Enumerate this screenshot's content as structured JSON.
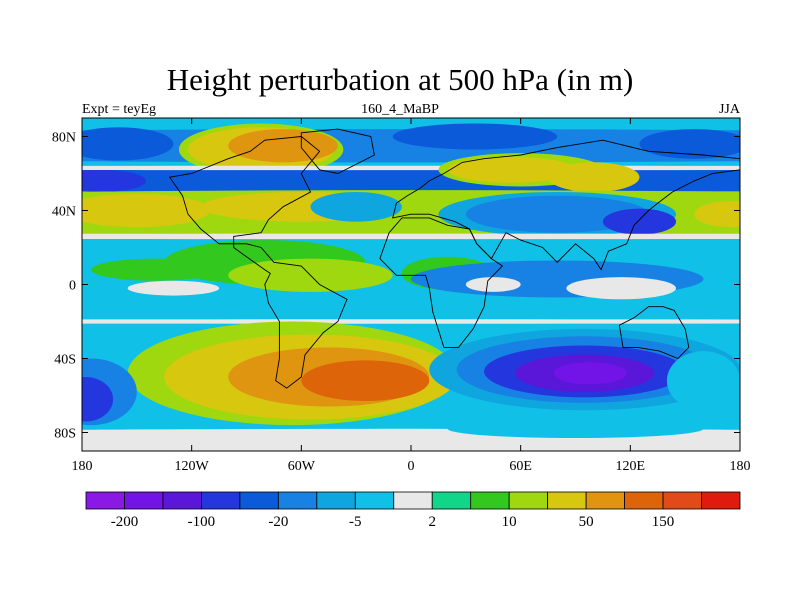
{
  "title": "Height perturbation at 500 hPa (in m)",
  "left_string": "Expt = teyEg",
  "center_string": "160_4_MaBP",
  "right_string": "JJA",
  "chart_data": {
    "type": "heatmap",
    "title": "Height perturbation at 500 hPa (in m)",
    "xlim": [
      -180,
      180
    ],
    "ylim": [
      -90,
      90
    ],
    "x_ticks": [
      {
        "value": -180,
        "label": "180"
      },
      {
        "value": -120,
        "label": "120W"
      },
      {
        "value": -60,
        "label": "60W"
      },
      {
        "value": 0,
        "label": "0"
      },
      {
        "value": 60,
        "label": "60E"
      },
      {
        "value": 120,
        "label": "120E"
      },
      {
        "value": 180,
        "label": "180"
      }
    ],
    "y_ticks": [
      {
        "value": 80,
        "label": "80N"
      },
      {
        "value": 40,
        "label": "40N"
      },
      {
        "value": 0,
        "label": "0"
      },
      {
        "value": -40,
        "label": "40S"
      },
      {
        "value": -80,
        "label": "80S"
      }
    ],
    "colorbar": {
      "colors": [
        "#8a19e6",
        "#7214e8",
        "#5a16d9",
        "#2436de",
        "#0a5ad9",
        "#1782e3",
        "#0fa6df",
        "#10c0e6",
        "#e8e8e8",
        "#10d68a",
        "#32c81e",
        "#a0d80f",
        "#d8c70f",
        "#e09511",
        "#de6409",
        "#e24a1a",
        "#e01a0e"
      ],
      "labels": [
        {
          "after_box": 1,
          "text": "-200"
        },
        {
          "after_box": 3,
          "text": "-100"
        },
        {
          "after_box": 5,
          "text": "-20"
        },
        {
          "after_box": 7,
          "text": "-5"
        },
        {
          "after_box": 9,
          "text": "2"
        },
        {
          "after_box": 11,
          "text": "10"
        },
        {
          "after_box": 13,
          "text": "50"
        },
        {
          "after_box": 15,
          "text": "150"
        }
      ]
    },
    "regions": [
      {
        "name": "band-75n",
        "lon": 0,
        "lat": 75,
        "rx": 500,
        "ry": 9,
        "color": "#1782e3"
      },
      {
        "name": "n-europe-low",
        "lon": 35,
        "lat": 80,
        "rx": 45,
        "ry": 7,
        "color": "#0a5ad9"
      },
      {
        "name": "n-pacific-low",
        "lon": -160,
        "lat": 76,
        "rx": 30,
        "ry": 9,
        "color": "#0a5ad9"
      },
      {
        "name": "e-siberia-low",
        "lon": 155,
        "lat": 76,
        "rx": 30,
        "ry": 8,
        "color": "#0a5ad9"
      },
      {
        "name": "arctic-high-1",
        "lon": -82,
        "lat": 73,
        "rx": 45,
        "ry": 14,
        "color": "#a0d80f"
      },
      {
        "name": "arctic-high-2",
        "lon": -82,
        "lat": 73,
        "rx": 40,
        "ry": 12,
        "color": "#d8c70f"
      },
      {
        "name": "arctic-high-3",
        "lon": -70,
        "lat": 75,
        "rx": 30,
        "ry": 9,
        "color": "#e09511"
      },
      {
        "name": "band-57n",
        "lon": 0,
        "lat": 57,
        "rx": 500,
        "ry": 7,
        "color": "#0a5ad9"
      },
      {
        "name": "pac-lows-57n",
        "lon": -170,
        "lat": 56,
        "rx": 25,
        "ry": 6,
        "color": "#2436de"
      },
      {
        "name": "white-57n",
        "lon": 0,
        "lat": 63,
        "rx": 500,
        "ry": 1.2,
        "color": "#e8e8e8"
      },
      {
        "name": "siberia-high-1",
        "lon": 60,
        "lat": 62,
        "rx": 45,
        "ry": 9,
        "color": "#a0d80f"
      },
      {
        "name": "siberia-high-2",
        "lon": 55,
        "lat": 62,
        "rx": 35,
        "ry": 7,
        "color": "#d8c70f"
      },
      {
        "name": "siberia-high-3",
        "lon": 100,
        "lat": 58,
        "rx": 25,
        "ry": 8,
        "color": "#d8c70f"
      },
      {
        "name": "band-35n",
        "lon": 0,
        "lat": 38,
        "rx": 500,
        "ry": 13,
        "color": "#a0d80f"
      },
      {
        "name": "atl-high",
        "lon": -150,
        "lat": 40,
        "rx": 40,
        "ry": 9,
        "color": "#d8c70f"
      },
      {
        "name": "atl-high-2",
        "lon": -60,
        "lat": 42,
        "rx": 55,
        "ry": 8,
        "color": "#d8c70f"
      },
      {
        "name": "na-low",
        "lon": -30,
        "lat": 42,
        "rx": 25,
        "ry": 8,
        "color": "#0fa6df"
      },
      {
        "name": "asia-low-1",
        "lon": 80,
        "lat": 38,
        "rx": 65,
        "ry": 12,
        "color": "#0fa6df"
      },
      {
        "name": "asia-low-2",
        "lon": 80,
        "lat": 38,
        "rx": 50,
        "ry": 10,
        "color": "#1782e3"
      },
      {
        "name": "asia-low-3",
        "lon": 125,
        "lat": 34,
        "rx": 20,
        "ry": 7,
        "color": "#2436de"
      },
      {
        "name": "pac-high-e",
        "lon": 175,
        "lat": 38,
        "rx": 20,
        "ry": 7,
        "color": "#d8c70f"
      },
      {
        "name": "white-25n",
        "lon": 0,
        "lat": 26,
        "rx": 500,
        "ry": 1.5,
        "color": "#e8e8e8"
      },
      {
        "name": "band-15n",
        "lon": 0,
        "lat": 15,
        "rx": 500,
        "ry": 9,
        "color": "#10c0e6"
      },
      {
        "name": "trop-green",
        "lon": -80,
        "lat": 12,
        "rx": 55,
        "ry": 12,
        "color": "#32c81e"
      },
      {
        "name": "trop-lime",
        "lon": -55,
        "lat": 5,
        "rx": 45,
        "ry": 9,
        "color": "#a0d80f"
      },
      {
        "name": "afr-green",
        "lon": 20,
        "lat": 6,
        "rx": 25,
        "ry": 9,
        "color": "#32c81e"
      },
      {
        "name": "pac-green",
        "lon": -140,
        "lat": 8,
        "rx": 35,
        "ry": 6,
        "color": "#32c81e"
      },
      {
        "name": "eq-low-1",
        "lon": 80,
        "lat": 3,
        "rx": 80,
        "ry": 10,
        "color": "#1782e3"
      },
      {
        "name": "eq-white-1",
        "lon": 115,
        "lat": -2,
        "rx": 30,
        "ry": 6,
        "color": "#e8e8e8"
      },
      {
        "name": "eq-white-2",
        "lon": -130,
        "lat": -2,
        "rx": 25,
        "ry": 4,
        "color": "#e8e8e8"
      },
      {
        "name": "eq-white-3",
        "lon": 45,
        "lat": 0,
        "rx": 15,
        "ry": 4,
        "color": "#e8e8e8"
      },
      {
        "name": "sh-blue",
        "lon": 0,
        "lat": -22,
        "rx": 500,
        "ry": 7,
        "color": "#10c0e6"
      },
      {
        "name": "white-sh",
        "lon": -10,
        "lat": -20,
        "rx": 500,
        "ry": 1.2,
        "color": "#e8e8e8"
      },
      {
        "name": "sh-high-1",
        "lon": -65,
        "lat": -48,
        "rx": 90,
        "ry": 28,
        "color": "#a0d80f"
      },
      {
        "name": "sh-high-2",
        "lon": -55,
        "lat": -50,
        "rx": 80,
        "ry": 23,
        "color": "#d8c70f"
      },
      {
        "name": "sh-high-3",
        "lon": -45,
        "lat": -50,
        "rx": 55,
        "ry": 16,
        "color": "#e09511"
      },
      {
        "name": "sh-high-4",
        "lon": -25,
        "lat": -52,
        "rx": 35,
        "ry": 11,
        "color": "#de6409"
      },
      {
        "name": "sh-low-w",
        "lon": -175,
        "lat": -58,
        "rx": 25,
        "ry": 18,
        "color": "#1782e3"
      },
      {
        "name": "sh-low-w2",
        "lon": -178,
        "lat": -62,
        "rx": 15,
        "ry": 12,
        "color": "#2436de"
      },
      {
        "name": "sh-low-e1",
        "lon": 95,
        "lat": -46,
        "rx": 85,
        "ry": 22,
        "color": "#0fa6df"
      },
      {
        "name": "sh-low-e2",
        "lon": 95,
        "lat": -46,
        "rx": 70,
        "ry": 18,
        "color": "#1782e3"
      },
      {
        "name": "sh-low-e3",
        "lon": 95,
        "lat": -47,
        "rx": 55,
        "ry": 14,
        "color": "#2436de"
      },
      {
        "name": "sh-low-e4",
        "lon": 95,
        "lat": -48,
        "rx": 38,
        "ry": 10,
        "color": "#5a16d9"
      },
      {
        "name": "sh-low-e5",
        "lon": 98,
        "lat": -48,
        "rx": 20,
        "ry": 6,
        "color": "#7214e8"
      },
      {
        "name": "sh-green-e",
        "lon": 160,
        "lat": -52,
        "rx": 20,
        "ry": 16,
        "color": "#10c0e6"
      },
      {
        "name": "antarctic",
        "lon": 0,
        "lat": -86,
        "rx": 500,
        "ry": 8,
        "color": "#e8e8e8"
      },
      {
        "name": "antarctic-blue",
        "lon": 90,
        "lat": -78,
        "rx": 70,
        "ry": 5,
        "color": "#10c0e6"
      }
    ],
    "outline": [
      [
        [
          -132,
          58
        ],
        [
          -120,
          60
        ],
        [
          -100,
          68
        ],
        [
          -88,
          72
        ],
        [
          -80,
          78
        ],
        [
          -60,
          80
        ],
        [
          -50,
          72
        ],
        [
          -60,
          60
        ],
        [
          -55,
          50
        ],
        [
          -70,
          42
        ],
        [
          -78,
          35
        ],
        [
          -82,
          28
        ],
        [
          -97,
          26
        ],
        [
          -97,
          20
        ],
        [
          -90,
          15
        ],
        [
          -80,
          8
        ],
        [
          -77,
          6
        ],
        [
          -80,
          0
        ],
        [
          -78,
          -10
        ],
        [
          -72,
          -20
        ],
        [
          -72,
          -40
        ],
        [
          -74,
          -52
        ],
        [
          -68,
          -56
        ],
        [
          -60,
          -50
        ],
        [
          -58,
          -38
        ],
        [
          -48,
          -26
        ],
        [
          -40,
          -20
        ],
        [
          -35,
          -8
        ],
        [
          -50,
          0
        ],
        [
          -60,
          10
        ],
        [
          -75,
          12
        ],
        [
          -82,
          20
        ],
        [
          -90,
          22
        ],
        [
          -105,
          22
        ],
        [
          -115,
          30
        ],
        [
          -122,
          38
        ],
        [
          -125,
          48
        ],
        [
          -132,
          58
        ]
      ],
      [
        [
          -10,
          36
        ],
        [
          -8,
          44
        ],
        [
          -2,
          48
        ],
        [
          5,
          52
        ],
        [
          10,
          56
        ],
        [
          18,
          60
        ],
        [
          28,
          66
        ],
        [
          40,
          68
        ],
        [
          60,
          70
        ],
        [
          80,
          74
        ],
        [
          105,
          78
        ],
        [
          130,
          72
        ],
        [
          160,
          70
        ],
        [
          180,
          68
        ],
        [
          180,
          62
        ],
        [
          165,
          60
        ],
        [
          155,
          56
        ],
        [
          143,
          50
        ],
        [
          135,
          44
        ],
        [
          130,
          40
        ],
        [
          122,
          32
        ],
        [
          118,
          22
        ],
        [
          108,
          18
        ],
        [
          104,
          8
        ],
        [
          100,
          14
        ],
        [
          90,
          22
        ],
        [
          80,
          12
        ],
        [
          72,
          20
        ],
        [
          60,
          24
        ],
        [
          52,
          28
        ],
        [
          44,
          14
        ],
        [
          36,
          22
        ],
        [
          32,
          30
        ],
        [
          24,
          34
        ],
        [
          10,
          38
        ],
        [
          0,
          38
        ],
        [
          -10,
          36
        ]
      ],
      [
        [
          -17,
          14
        ],
        [
          -8,
          5
        ],
        [
          8,
          5
        ],
        [
          10,
          -2
        ],
        [
          12,
          -15
        ],
        [
          18,
          -34
        ],
        [
          26,
          -34
        ],
        [
          34,
          -24
        ],
        [
          40,
          -12
        ],
        [
          42,
          2
        ],
        [
          50,
          10
        ],
        [
          44,
          14
        ],
        [
          36,
          22
        ],
        [
          32,
          30
        ],
        [
          20,
          32
        ],
        [
          10,
          36
        ],
        [
          -5,
          36
        ],
        [
          -12,
          28
        ],
        [
          -17,
          14
        ]
      ],
      [
        [
          114,
          -22
        ],
        [
          122,
          -18
        ],
        [
          130,
          -12
        ],
        [
          138,
          -12
        ],
        [
          144,
          -14
        ],
        [
          150,
          -24
        ],
        [
          152,
          -34
        ],
        [
          146,
          -40
        ],
        [
          136,
          -36
        ],
        [
          124,
          -34
        ],
        [
          116,
          -34
        ],
        [
          114,
          -22
        ]
      ],
      [
        [
          -50,
          62
        ],
        [
          -40,
          60
        ],
        [
          -20,
          70
        ],
        [
          -22,
          80
        ],
        [
          -40,
          84
        ],
        [
          -60,
          82
        ],
        [
          -60,
          74
        ],
        [
          -50,
          62
        ]
      ]
    ]
  }
}
